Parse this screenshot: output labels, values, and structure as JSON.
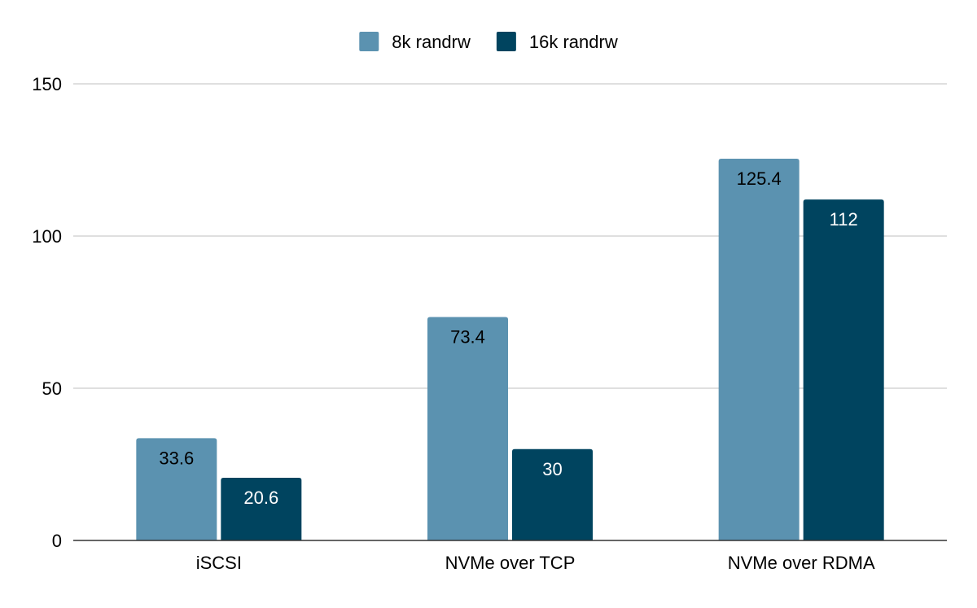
{
  "colors": {
    "background": "#ffffff",
    "gridline": "#cccccc",
    "axis": "#333333",
    "text": "#000000"
  },
  "chart_data": {
    "type": "bar",
    "title": "",
    "xlabel": "",
    "ylabel": "",
    "categories": [
      "iSCSI",
      "NVMe over TCP",
      "NVMe over RDMA"
    ],
    "series": [
      {
        "name": "8k randrw",
        "color": "#5b92b0",
        "label_color": "#000000",
        "values": [
          33.6,
          73.4,
          125.4
        ]
      },
      {
        "name": "16k randrw",
        "color": "#00445f",
        "label_color": "#ffffff",
        "values": [
          20.6,
          30,
          112
        ]
      }
    ],
    "ylim": [
      0,
      150
    ],
    "yticks": [
      0,
      50,
      100,
      150
    ],
    "grid": true,
    "legend_position": "top-center",
    "data_labels": true
  }
}
